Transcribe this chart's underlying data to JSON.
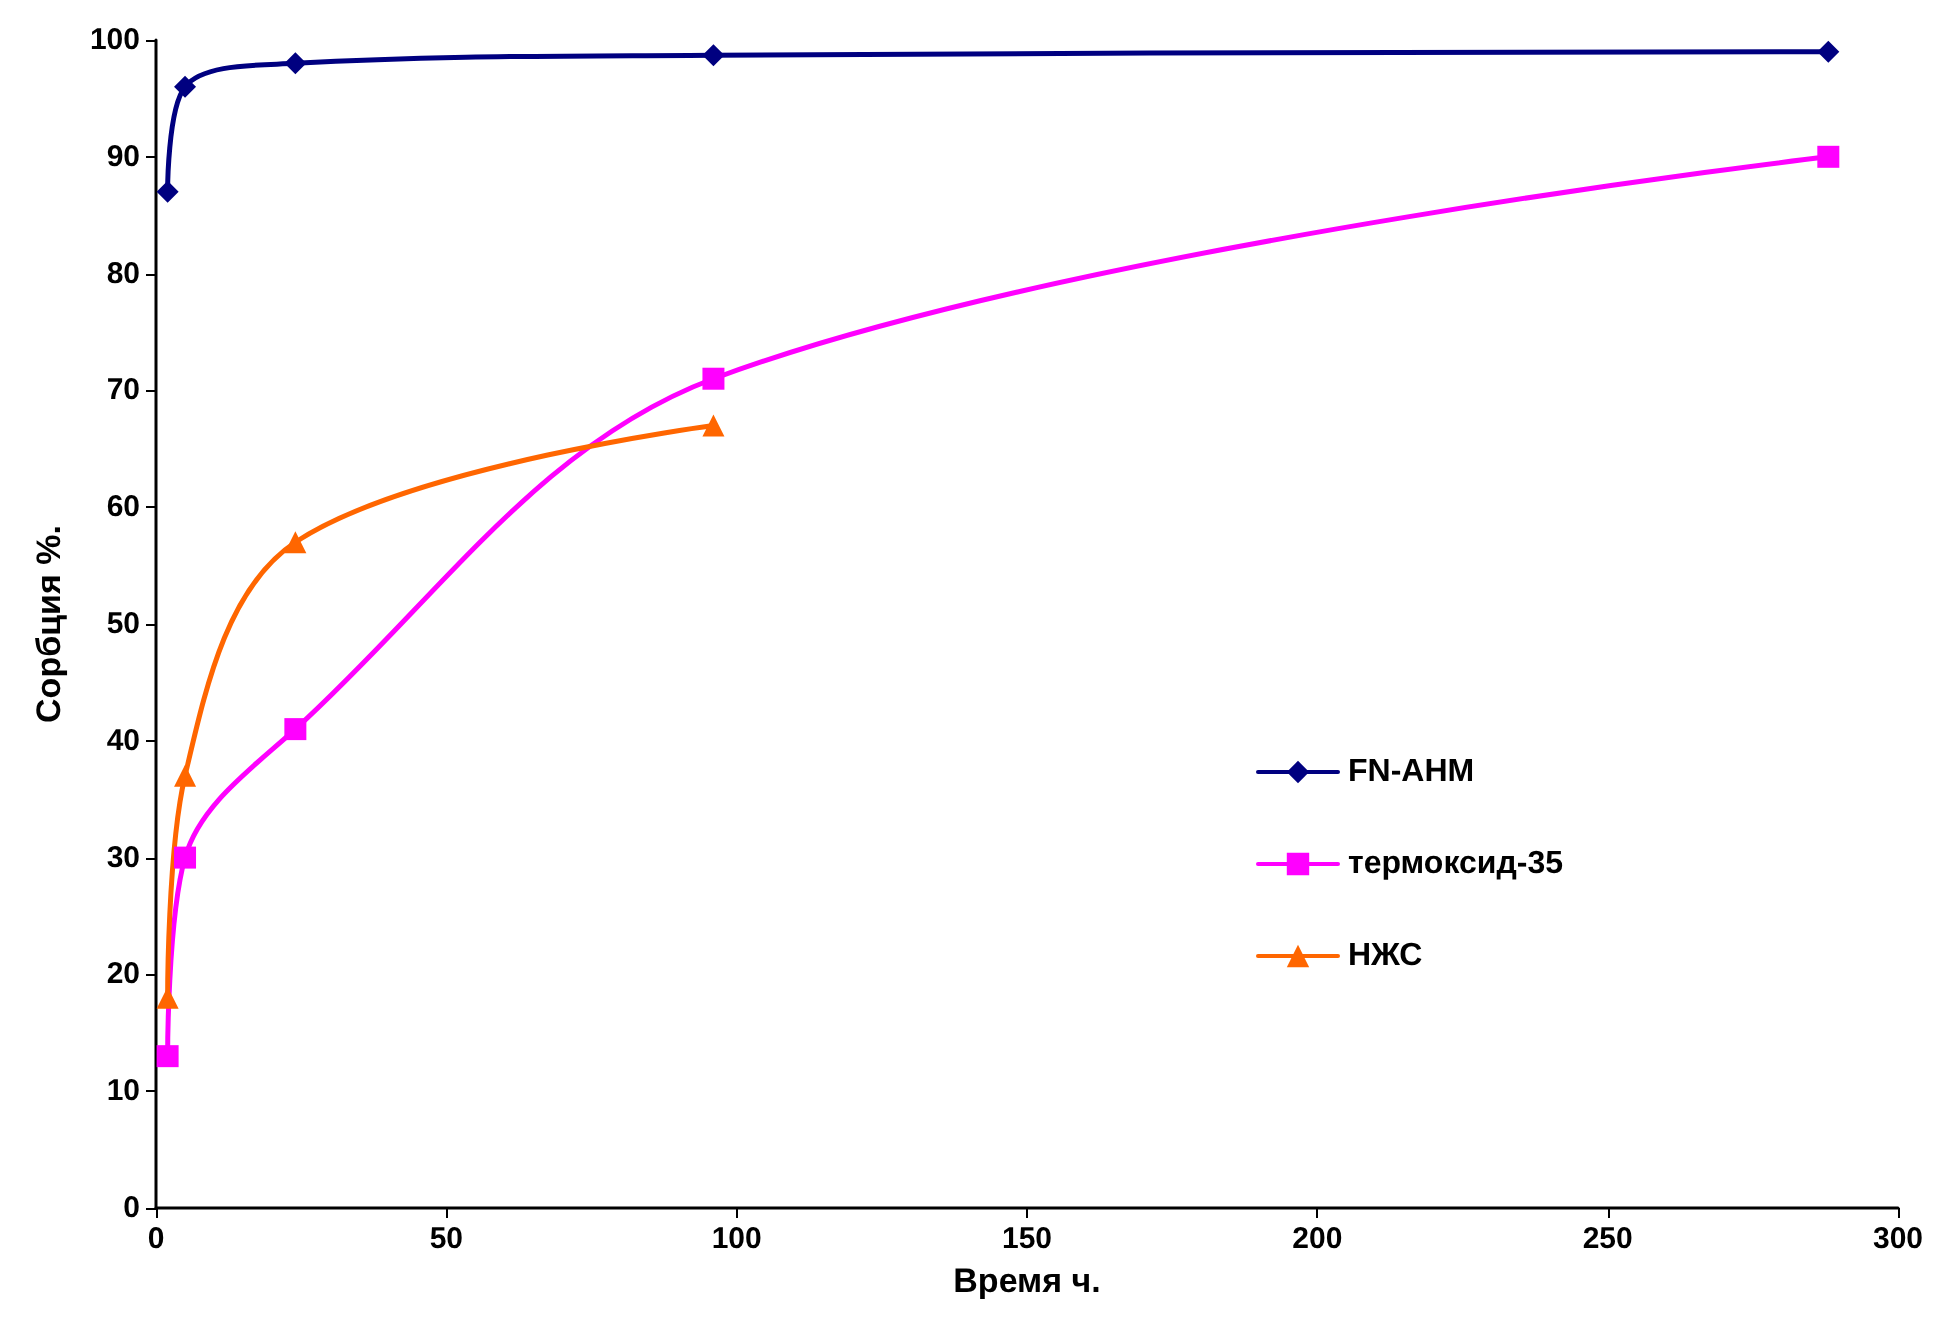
{
  "chart_data": {
    "type": "line",
    "xlabel": "Время ч.",
    "ylabel": "Сорбция %.",
    "xlim": [
      0,
      300
    ],
    "xticks": [
      0,
      50,
      100,
      150,
      200,
      250,
      300
    ],
    "ylim": [
      0,
      100
    ],
    "yticks": [
      0,
      10,
      20,
      30,
      40,
      50,
      60,
      70,
      80,
      90,
      100
    ],
    "grid": false,
    "legend": "right",
    "line_style": "solid",
    "series": [
      {
        "name": "FN-АНМ",
        "color": "#000080",
        "marker": "diamond",
        "x": [
          2,
          5,
          24,
          96,
          288
        ],
        "values": [
          87,
          96,
          98,
          98.7,
          99
        ]
      },
      {
        "name": "термоксид-35",
        "color": "#ff00ff",
        "marker": "square",
        "x": [
          2,
          5,
          24,
          96,
          288
        ],
        "values": [
          13,
          30,
          41,
          71,
          90
        ]
      },
      {
        "name": "НЖС",
        "color": "#ff6600",
        "marker": "triangle",
        "x": [
          2,
          5,
          24,
          96
        ],
        "values": [
          18,
          37,
          57,
          67
        ]
      }
    ]
  }
}
